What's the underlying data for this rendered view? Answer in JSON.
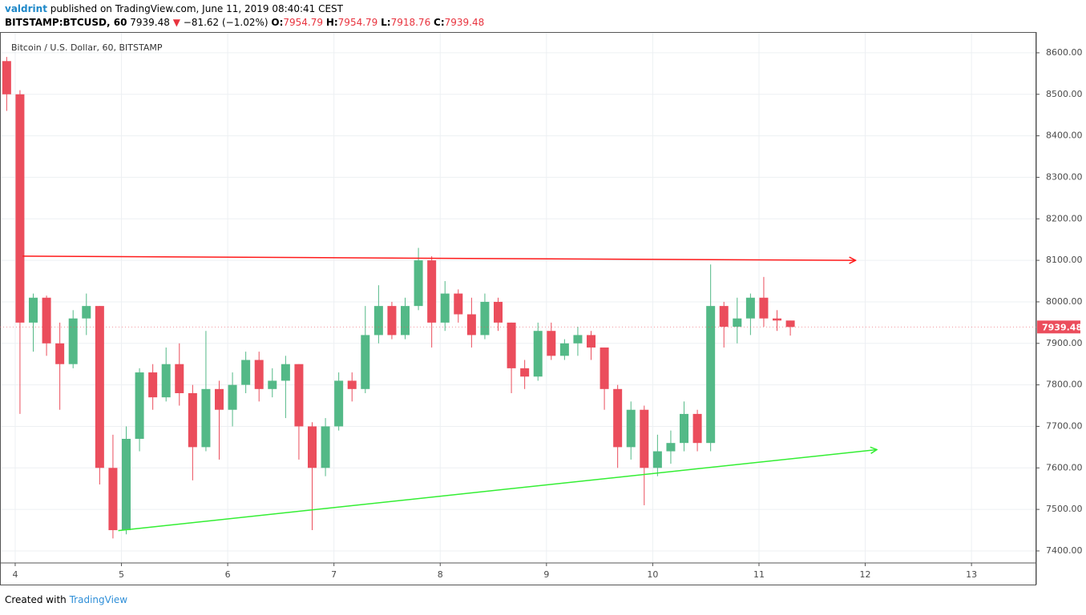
{
  "header": {
    "user": "valdrint",
    "published": "published on TradingView.com, June 11, 2019 08:40:41 CEST",
    "symbol": "BITSTAMP:BTCUSD, 60",
    "last": "7939.48",
    "arrow": "▼",
    "change": "−81.62 (−1.02%)",
    "o_label": "O:",
    "o": "7954.79",
    "h_label": "H:",
    "h": "7954.79",
    "l_label": "L:",
    "l": "7918.76",
    "c_label": "C:",
    "c": "7939.48"
  },
  "footer": {
    "text": "Created with",
    "brand": "TradingView"
  },
  "chart_data": {
    "type": "candlestick",
    "legend": "Bitcoin / U.S. Dollar, 60, BITSTAMP",
    "up_color": "#53b987",
    "down_color": "#eb4d5c",
    "grid": true,
    "xlim": [
      3.857,
      13.61
    ],
    "xticks": [
      4,
      5,
      6,
      7,
      8,
      9,
      10,
      11,
      12,
      13
    ],
    "ylim": [
      7371,
      8650
    ],
    "yticks": [
      {
        "value": 7400,
        "label": "7400.00"
      },
      {
        "value": 7500,
        "label": "7500.00"
      },
      {
        "value": 7600,
        "label": "7600.00"
      },
      {
        "value": 7700,
        "label": "7700.00"
      },
      {
        "value": 7800,
        "label": "7800.00"
      },
      {
        "value": 7900,
        "label": "7900.00"
      },
      {
        "value": 8000,
        "label": "8000.00"
      },
      {
        "value": 8100,
        "label": "8100.00"
      },
      {
        "value": 8200,
        "label": "8200.00"
      },
      {
        "value": 8300,
        "label": "8300.00"
      },
      {
        "value": 8400,
        "label": "8400.00"
      },
      {
        "value": 8500,
        "label": "8500.00"
      },
      {
        "value": 8600,
        "label": "8600.00"
      }
    ],
    "x": [
      3.92,
      4.045,
      4.17,
      4.295,
      4.42,
      4.545,
      4.67,
      4.795,
      4.92,
      5.045,
      5.17,
      5.295,
      5.42,
      5.545,
      5.67,
      5.795,
      5.92,
      6.045,
      6.17,
      6.295,
      6.42,
      6.545,
      6.67,
      6.795,
      6.92,
      7.045,
      7.17,
      7.295,
      7.42,
      7.545,
      7.67,
      7.795,
      7.92,
      8.045,
      8.17,
      8.295,
      8.42,
      8.545,
      8.67,
      8.795,
      8.92,
      9.045,
      9.17,
      9.295,
      9.42,
      9.545,
      9.67,
      9.795,
      9.92,
      10.045,
      10.17,
      10.295,
      10.42,
      10.545,
      10.67,
      10.795,
      10.92,
      11.045,
      11.17,
      11.295
    ],
    "open": [
      8580,
      8500,
      7950,
      8010,
      7900,
      7850,
      7960,
      7990,
      7600,
      7450,
      7670,
      7830,
      7770,
      7850,
      7780,
      7650,
      7790,
      7740,
      7800,
      7860,
      7790,
      7810,
      7850,
      7700,
      7600,
      7700,
      7810,
      7790,
      7920,
      7990,
      7920,
      7990,
      8100,
      7950,
      8020,
      7970,
      7920,
      8000,
      7950,
      7840,
      7820,
      7930,
      7870,
      7900,
      7920,
      7890,
      7790,
      7650,
      7740,
      7600,
      7640,
      7660,
      7730,
      7660,
      7990,
      7940,
      7960,
      8010,
      7960,
      7955
    ],
    "high": [
      8590,
      8510,
      8020,
      8015,
      7950,
      7980,
      8020,
      7990,
      7680,
      7700,
      7840,
      7850,
      7890,
      7900,
      7800,
      7930,
      7810,
      7830,
      7880,
      7880,
      7840,
      7870,
      7850,
      7710,
      7720,
      7830,
      7830,
      7990,
      8040,
      8000,
      8010,
      8130,
      8110,
      8050,
      8030,
      8010,
      8020,
      8010,
      7950,
      7860,
      7950,
      7950,
      7910,
      7940,
      7930,
      7890,
      7800,
      7760,
      7750,
      7680,
      7690,
      7760,
      7740,
      8090,
      8000,
      8010,
      8020,
      8060,
      7980,
      7954.79
    ],
    "low": [
      8460,
      7730,
      7880,
      7870,
      7740,
      7840,
      7920,
      7560,
      7430,
      7440,
      7640,
      7740,
      7760,
      7750,
      7570,
      7640,
      7620,
      7700,
      7780,
      7760,
      7770,
      7720,
      7620,
      7450,
      7580,
      7690,
      7760,
      7780,
      7900,
      7910,
      7910,
      7980,
      7890,
      7930,
      7950,
      7890,
      7910,
      7930,
      7780,
      7790,
      7810,
      7860,
      7860,
      7870,
      7860,
      7740,
      7600,
      7620,
      7510,
      7580,
      7610,
      7640,
      7640,
      7640,
      7890,
      7900,
      7920,
      7940,
      7930,
      7918.76
    ],
    "close": [
      8500,
      7950,
      8010,
      7900,
      7850,
      7960,
      7990,
      7600,
      7450,
      7670,
      7830,
      7770,
      7850,
      7780,
      7650,
      7790,
      7740,
      7800,
      7860,
      7790,
      7810,
      7850,
      7700,
      7600,
      7700,
      7810,
      7790,
      7920,
      7990,
      7920,
      7990,
      8100,
      7950,
      8020,
      7970,
      7920,
      8000,
      7950,
      7840,
      7820,
      7930,
      7870,
      7900,
      7920,
      7890,
      7790,
      7650,
      7740,
      7600,
      7640,
      7660,
      7730,
      7660,
      7990,
      7940,
      7960,
      8010,
      7960,
      7955,
      7939.48
    ],
    "lines": [
      {
        "color": "#ff1a1a",
        "x": [
          4.07,
          11.91
        ],
        "y": [
          8110,
          8100
        ]
      },
      {
        "color": "#33ee33",
        "x": [
          4.97,
          12.11
        ],
        "y": [
          7449,
          7644
        ]
      }
    ]
  }
}
